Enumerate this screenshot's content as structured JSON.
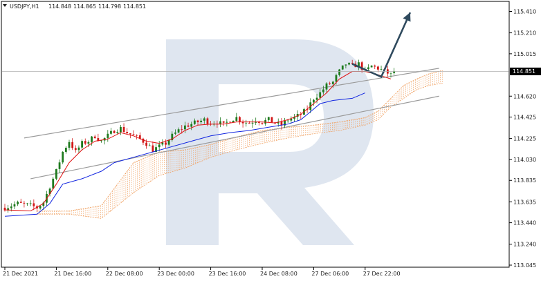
{
  "chart_data": {
    "type": "candlestick",
    "symbol_label": "USDJPY,H1",
    "ohlc_header": [
      "114.848",
      "114.865",
      "114.798",
      "114.851"
    ],
    "current_price": 114.851,
    "current_price_label": "114.851",
    "y_ticks": [
      113.045,
      113.24,
      113.44,
      113.635,
      113.835,
      114.03,
      114.225,
      114.425,
      114.62,
      114.82,
      115.015,
      115.21,
      115.41
    ],
    "y_tick_labels": [
      "113.045",
      "113.240",
      "113.440",
      "113.635",
      "113.835",
      "114.030",
      "114.225",
      "114.425",
      "114.620",
      "114.820",
      "115.015",
      "115.210",
      "115.410"
    ],
    "ylim": [
      113.0,
      115.5
    ],
    "x_labels": [
      "21 Dec 2021",
      "21 Dec 16:00",
      "22 Dec 08:00",
      "23 Dec 00:00",
      "23 Dec 16:00",
      "24 Dec 08:00",
      "27 Dec 06:00",
      "27 Dec 22:00"
    ],
    "x_label_bars": [
      0,
      16,
      32,
      48,
      64,
      80,
      96,
      112
    ],
    "bar_count": 122,
    "close_path": [
      [
        0,
        113.58
      ],
      [
        4,
        113.62
      ],
      [
        8,
        113.6
      ],
      [
        10,
        113.58
      ],
      [
        12,
        113.63
      ],
      [
        14,
        113.78
      ],
      [
        16,
        113.92
      ],
      [
        18,
        114.1
      ],
      [
        20,
        114.2
      ],
      [
        22,
        114.1
      ],
      [
        24,
        114.18
      ],
      [
        26,
        114.2
      ],
      [
        28,
        114.25
      ],
      [
        30,
        114.2
      ],
      [
        32,
        114.25
      ],
      [
        34,
        114.3
      ],
      [
        36,
        114.32
      ],
      [
        38,
        114.28
      ],
      [
        40,
        114.25
      ],
      [
        42,
        114.22
      ],
      [
        44,
        114.18
      ],
      [
        46,
        114.12
      ],
      [
        48,
        114.15
      ],
      [
        50,
        114.18
      ],
      [
        52,
        114.25
      ],
      [
        54,
        114.3
      ],
      [
        56,
        114.34
      ],
      [
        58,
        114.36
      ],
      [
        60,
        114.38
      ],
      [
        62,
        114.4
      ],
      [
        64,
        114.37
      ],
      [
        66,
        114.38
      ],
      [
        68,
        114.35
      ],
      [
        70,
        114.4
      ],
      [
        72,
        114.42
      ],
      [
        74,
        114.38
      ],
      [
        76,
        114.37
      ],
      [
        78,
        114.4
      ],
      [
        80,
        114.38
      ],
      [
        82,
        114.4
      ],
      [
        84,
        114.37
      ],
      [
        86,
        114.35
      ],
      [
        88,
        114.4
      ],
      [
        90,
        114.42
      ],
      [
        92,
        114.45
      ],
      [
        94,
        114.5
      ],
      [
        96,
        114.6
      ],
      [
        98,
        114.65
      ],
      [
        100,
        114.72
      ],
      [
        102,
        114.75
      ],
      [
        104,
        114.85
      ],
      [
        106,
        114.92
      ],
      [
        108,
        114.9
      ],
      [
        110,
        114.92
      ],
      [
        112,
        114.85
      ],
      [
        114,
        114.9
      ],
      [
        116,
        114.88
      ],
      [
        118,
        114.85
      ],
      [
        120,
        114.82
      ],
      [
        121,
        114.85
      ]
    ],
    "tenkan_path": [
      [
        0,
        113.56
      ],
      [
        8,
        113.55
      ],
      [
        12,
        113.62
      ],
      [
        16,
        113.8
      ],
      [
        20,
        114.0
      ],
      [
        24,
        114.12
      ],
      [
        28,
        114.2
      ],
      [
        32,
        114.22
      ],
      [
        36,
        114.28
      ],
      [
        40,
        114.25
      ],
      [
        44,
        114.2
      ],
      [
        48,
        114.18
      ],
      [
        52,
        114.22
      ],
      [
        56,
        114.3
      ],
      [
        60,
        114.35
      ],
      [
        64,
        114.36
      ],
      [
        68,
        114.36
      ],
      [
        72,
        114.38
      ],
      [
        76,
        114.38
      ],
      [
        80,
        114.38
      ],
      [
        84,
        114.37
      ],
      [
        88,
        114.4
      ],
      [
        92,
        114.45
      ],
      [
        96,
        114.55
      ],
      [
        100,
        114.65
      ],
      [
        104,
        114.78
      ],
      [
        108,
        114.85
      ],
      [
        112,
        114.85
      ],
      [
        116,
        114.82
      ],
      [
        120,
        114.78
      ]
    ],
    "kijun_path": [
      [
        0,
        113.5
      ],
      [
        10,
        113.52
      ],
      [
        14,
        113.62
      ],
      [
        18,
        113.8
      ],
      [
        24,
        113.85
      ],
      [
        30,
        113.92
      ],
      [
        34,
        114.0
      ],
      [
        40,
        114.05
      ],
      [
        46,
        114.1
      ],
      [
        52,
        114.15
      ],
      [
        58,
        114.2
      ],
      [
        64,
        114.25
      ],
      [
        70,
        114.28
      ],
      [
        76,
        114.3
      ],
      [
        82,
        114.33
      ],
      [
        88,
        114.36
      ],
      [
        92,
        114.4
      ],
      [
        94,
        114.45
      ],
      [
        98,
        114.55
      ],
      [
        102,
        114.58
      ],
      [
        108,
        114.6
      ],
      [
        112,
        114.65
      ]
    ],
    "cloud_a": [
      [
        10,
        113.55
      ],
      [
        20,
        113.55
      ],
      [
        30,
        113.6
      ],
      [
        35,
        113.8
      ],
      [
        40,
        114.0
      ],
      [
        48,
        114.1
      ],
      [
        56,
        114.12
      ],
      [
        64,
        114.17
      ],
      [
        72,
        114.24
      ],
      [
        80,
        114.3
      ],
      [
        88,
        114.33
      ],
      [
        96,
        114.35
      ],
      [
        104,
        114.38
      ],
      [
        112,
        114.42
      ],
      [
        116,
        114.48
      ],
      [
        120,
        114.6
      ],
      [
        124,
        114.72
      ],
      [
        128,
        114.78
      ],
      [
        132,
        114.83
      ],
      [
        136,
        114.86
      ]
    ],
    "cloud_b": [
      [
        10,
        113.52
      ],
      [
        20,
        113.52
      ],
      [
        30,
        113.48
      ],
      [
        35,
        113.6
      ],
      [
        40,
        113.72
      ],
      [
        48,
        113.88
      ],
      [
        56,
        113.95
      ],
      [
        64,
        114.05
      ],
      [
        72,
        114.12
      ],
      [
        80,
        114.18
      ],
      [
        88,
        114.23
      ],
      [
        96,
        114.27
      ],
      [
        104,
        114.3
      ],
      [
        112,
        114.35
      ],
      [
        116,
        114.4
      ],
      [
        120,
        114.52
      ],
      [
        124,
        114.6
      ],
      [
        128,
        114.68
      ],
      [
        132,
        114.72
      ],
      [
        136,
        114.74
      ]
    ],
    "channel_upper": [
      [
        6,
        114.23
      ],
      [
        135,
        114.88
      ]
    ],
    "channel_lower": [
      [
        8,
        113.85
      ],
      [
        135,
        114.62
      ]
    ],
    "arrow_path": [
      [
        108,
        114.92
      ],
      [
        117,
        114.8
      ],
      [
        126,
        115.4
      ]
    ],
    "colors": {
      "bull_candle": "#1e7a1e",
      "bear_candle": "#d11818",
      "tenkan": "#e01010",
      "kijun": "#1024e0",
      "cloud": "#f0a060",
      "channel": "#9a9a9a",
      "arrow": "#2f4a5e",
      "watermark": "#dfe6f0",
      "price_box": "#000000"
    }
  }
}
